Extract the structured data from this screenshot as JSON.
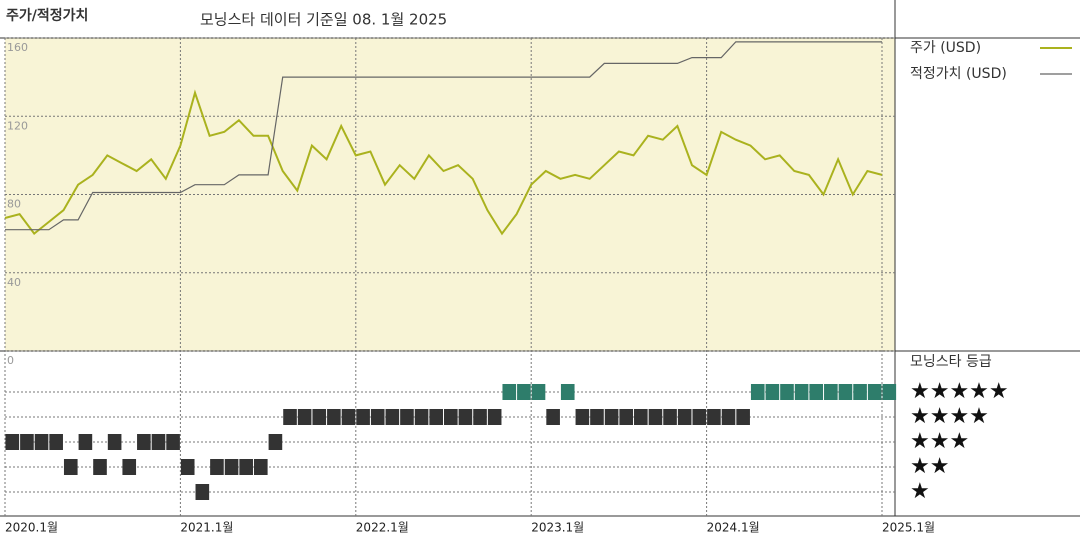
{
  "chart_data": [
    {
      "type": "line",
      "title": "주가/적정가치",
      "subtitle": "모닝스타 데이터 기준일 08. 1월 2025",
      "x": [
        "2020-01",
        "2020-02",
        "2020-03",
        "2020-04",
        "2020-05",
        "2020-06",
        "2020-07",
        "2020-08",
        "2020-09",
        "2020-10",
        "2020-11",
        "2020-12",
        "2021-01",
        "2021-02",
        "2021-03",
        "2021-04",
        "2021-05",
        "2021-06",
        "2021-07",
        "2021-08",
        "2021-09",
        "2021-10",
        "2021-11",
        "2021-12",
        "2022-01",
        "2022-02",
        "2022-03",
        "2022-04",
        "2022-05",
        "2022-06",
        "2022-07",
        "2022-08",
        "2022-09",
        "2022-10",
        "2022-11",
        "2022-12",
        "2023-01",
        "2023-02",
        "2023-03",
        "2023-04",
        "2023-05",
        "2023-06",
        "2023-07",
        "2023-08",
        "2023-09",
        "2023-10",
        "2023-11",
        "2023-12",
        "2024-01",
        "2024-02",
        "2024-03",
        "2024-04",
        "2024-05",
        "2024-06",
        "2024-07",
        "2024-08",
        "2024-09",
        "2024-10",
        "2024-11",
        "2024-12",
        "2025-01"
      ],
      "series": [
        {
          "name": "주가 (USD)",
          "color": "#aab21e",
          "values": [
            68,
            70,
            60,
            66,
            72,
            85,
            90,
            100,
            96,
            92,
            98,
            88,
            105,
            132,
            110,
            112,
            118,
            110,
            110,
            92,
            82,
            105,
            98,
            115,
            100,
            102,
            85,
            95,
            88,
            100,
            92,
            95,
            88,
            72,
            60,
            70,
            85,
            92,
            88,
            90,
            88,
            95,
            102,
            100,
            110,
            108,
            115,
            95,
            90,
            112,
            108,
            105,
            98,
            100,
            92,
            90,
            80,
            98,
            80,
            92,
            90
          ]
        },
        {
          "name": "적정가치 (USD)",
          "color": "#666666",
          "values": [
            62,
            62,
            62,
            62,
            67,
            67,
            81,
            81,
            81,
            81,
            81,
            81,
            81,
            85,
            85,
            85,
            90,
            90,
            90,
            140,
            140,
            140,
            140,
            140,
            140,
            140,
            140,
            140,
            140,
            140,
            140,
            140,
            140,
            140,
            140,
            140,
            140,
            140,
            140,
            140,
            140,
            147,
            147,
            147,
            147,
            147,
            147,
            150,
            150,
            150,
            158,
            158,
            158,
            158,
            158,
            158,
            158,
            158,
            158,
            158,
            158
          ]
        }
      ],
      "ylim": [
        0,
        160
      ],
      "yticks": [
        0,
        40,
        80,
        120,
        160
      ],
      "grid": true,
      "background": "#f8f4d6",
      "xticks": [
        {
          "value": "2020-01",
          "label": "2020.1월"
        },
        {
          "value": "2021-01",
          "label": "2021.1월"
        },
        {
          "value": "2022-01",
          "label": "2022.1월"
        },
        {
          "value": "2023-01",
          "label": "2023.1월"
        },
        {
          "value": "2024-01",
          "label": "2024.1월"
        },
        {
          "value": "2025-01",
          "label": "2025.1월"
        }
      ]
    },
    {
      "type": "rating",
      "title": "모닝스타 등급",
      "x": [
        "2020-01",
        "2020-02",
        "2020-03",
        "2020-04",
        "2020-05",
        "2020-06",
        "2020-07",
        "2020-08",
        "2020-09",
        "2020-10",
        "2020-11",
        "2020-12",
        "2021-01",
        "2021-02",
        "2021-03",
        "2021-04",
        "2021-05",
        "2021-06",
        "2021-07",
        "2021-08",
        "2021-09",
        "2021-10",
        "2021-11",
        "2021-12",
        "2022-01",
        "2022-02",
        "2022-03",
        "2022-04",
        "2022-05",
        "2022-06",
        "2022-07",
        "2022-08",
        "2022-09",
        "2022-10",
        "2022-11",
        "2022-12",
        "2023-01",
        "2023-02",
        "2023-03",
        "2023-04",
        "2023-05",
        "2023-06",
        "2023-07",
        "2023-08",
        "2023-09",
        "2023-10",
        "2023-11",
        "2023-12",
        "2024-01",
        "2024-02",
        "2024-03",
        "2024-04",
        "2024-05",
        "2024-06",
        "2024-07",
        "2024-08",
        "2024-09",
        "2024-10",
        "2024-11",
        "2024-12",
        "2025-01"
      ],
      "values": [
        3,
        3,
        3,
        3,
        2,
        3,
        2,
        3,
        2,
        3,
        3,
        3,
        2,
        1,
        2,
        2,
        2,
        2,
        3,
        4,
        4,
        4,
        4,
        4,
        4,
        4,
        4,
        4,
        4,
        4,
        4,
        4,
        4,
        4,
        5,
        5,
        5,
        4,
        5,
        4,
        4,
        4,
        4,
        4,
        4,
        4,
        4,
        4,
        4,
        4,
        4,
        5,
        5,
        5,
        5,
        5,
        5,
        5,
        5,
        5,
        5
      ],
      "color": "#333333",
      "top_color": "#2e7d6b",
      "yticks": [
        {
          "value": 5,
          "label": "★★★★★"
        },
        {
          "value": 4,
          "label": "★★★★"
        },
        {
          "value": 3,
          "label": "★★★"
        },
        {
          "value": 2,
          "label": "★★"
        },
        {
          "value": 1,
          "label": "★"
        }
      ]
    }
  ]
}
